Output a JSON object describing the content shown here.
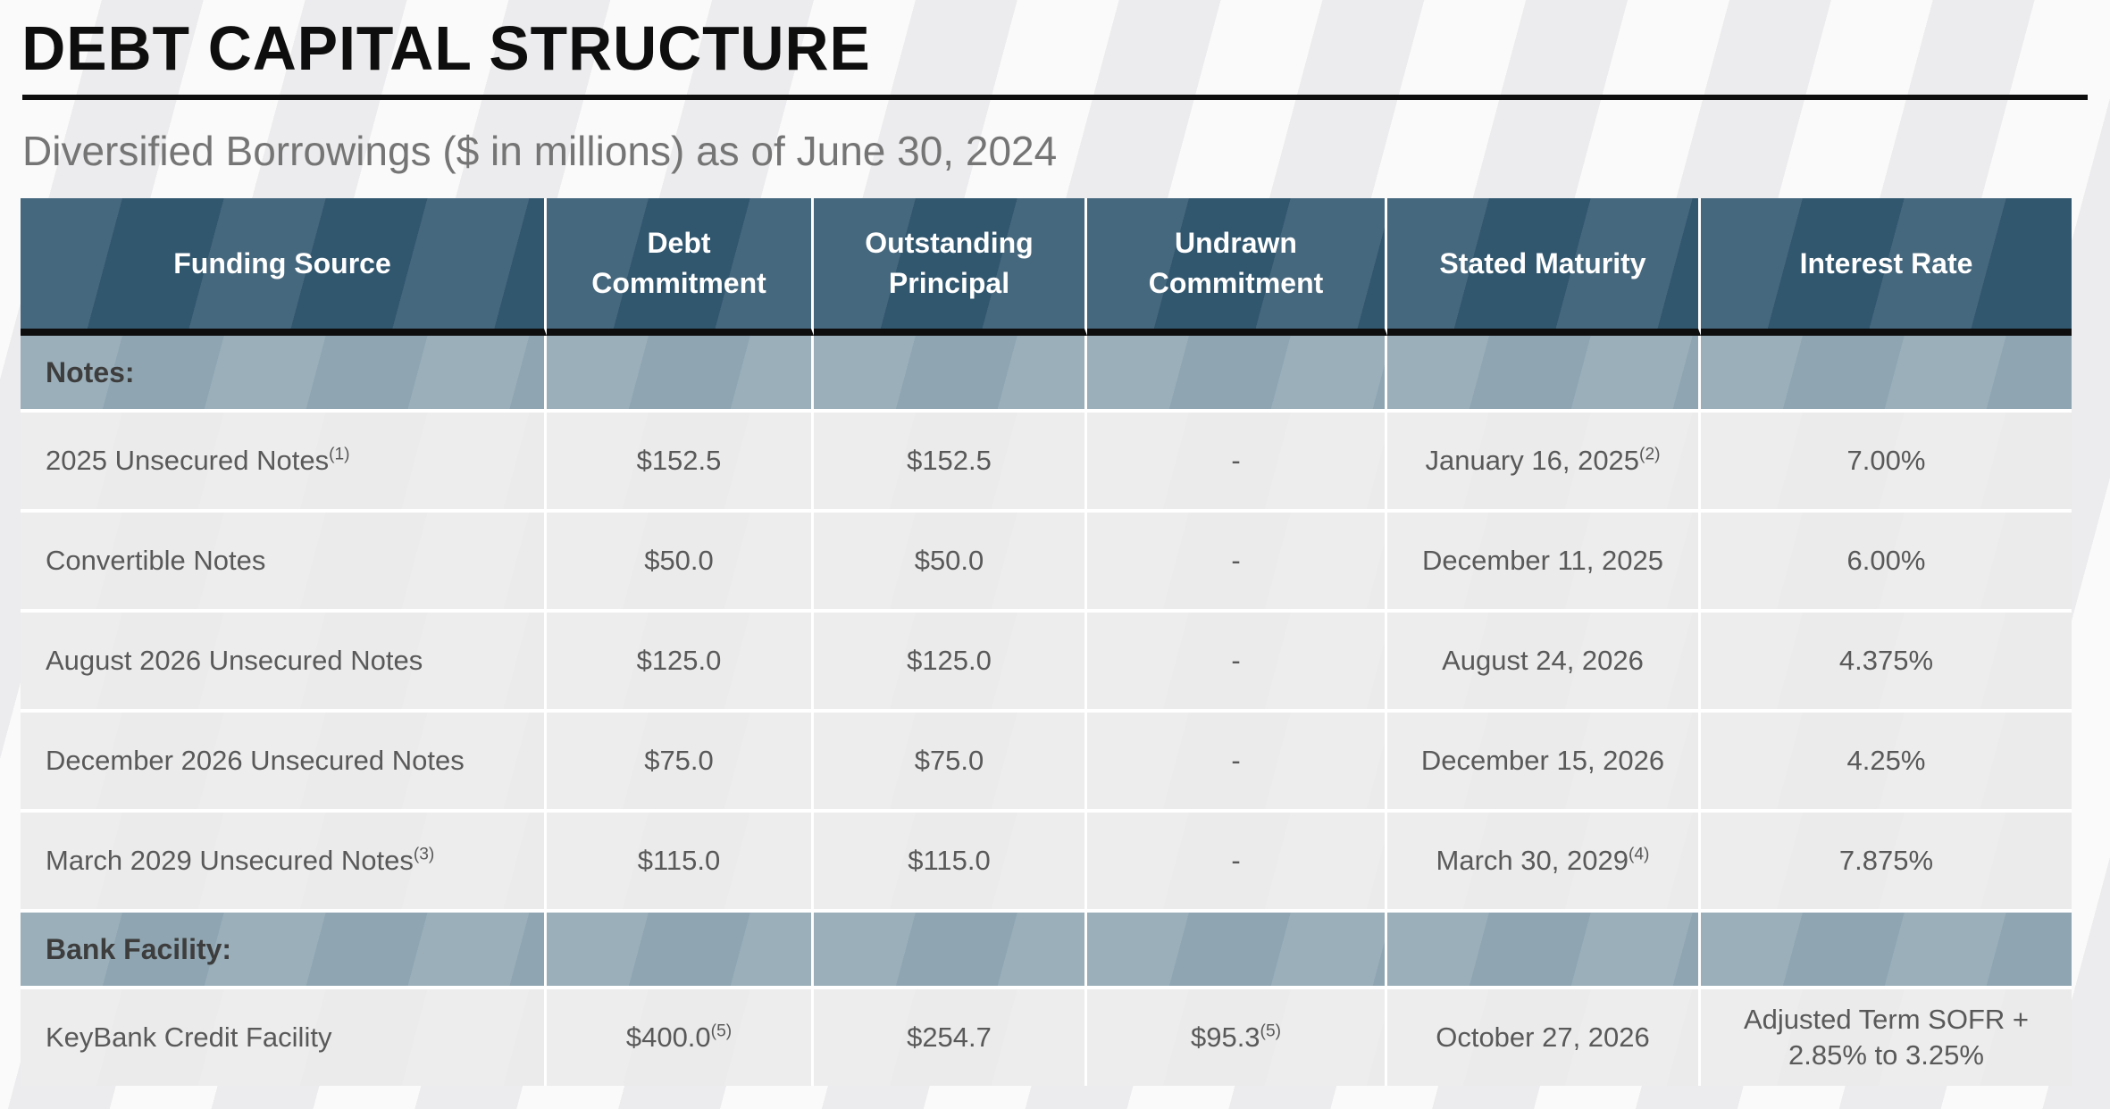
{
  "page": {
    "title": "DEBT CAPITAL STRUCTURE",
    "subtitle": "Diversified Borrowings ($ in millions) as of June 30, 2024"
  },
  "colors": {
    "header_bg": "#31576F",
    "section_bg": "#8FA6B2",
    "row_bg": "#EBEBEB",
    "rule_color": "#0e0e0e",
    "title_color": "#0e0e0e",
    "subtitle_color": "#757575",
    "data_text": "#595959",
    "section_text": "#3d3d3d"
  },
  "table": {
    "columns": [
      "Funding Source",
      "Debt Commitment",
      "Outstanding Principal",
      "Undrawn Commitment",
      "Stated Maturity",
      "Interest Rate"
    ],
    "rows": [
      {
        "type": "section",
        "label": "Notes:"
      },
      {
        "type": "data",
        "cells": [
          {
            "text": "2025 Unsecured Notes",
            "sup": "(1)"
          },
          {
            "text": "$152.5"
          },
          {
            "text": "$152.5"
          },
          {
            "text": "-"
          },
          {
            "text": "January 16, 2025",
            "sup": "(2)"
          },
          {
            "text": "7.00%"
          }
        ]
      },
      {
        "type": "data",
        "cells": [
          {
            "text": "Convertible Notes"
          },
          {
            "text": "$50.0"
          },
          {
            "text": "$50.0"
          },
          {
            "text": "-"
          },
          {
            "text": "December 11, 2025"
          },
          {
            "text": "6.00%"
          }
        ]
      },
      {
        "type": "data",
        "cells": [
          {
            "text": "August 2026 Unsecured Notes"
          },
          {
            "text": "$125.0"
          },
          {
            "text": "$125.0"
          },
          {
            "text": "-"
          },
          {
            "text": "August 24, 2026"
          },
          {
            "text": "4.375%"
          }
        ]
      },
      {
        "type": "data",
        "cells": [
          {
            "text": "December 2026 Unsecured Notes"
          },
          {
            "text": "$75.0"
          },
          {
            "text": "$75.0"
          },
          {
            "text": "-"
          },
          {
            "text": "December 15, 2026"
          },
          {
            "text": "4.25%"
          }
        ]
      },
      {
        "type": "data",
        "cells": [
          {
            "text": "March 2029 Unsecured Notes",
            "sup": "(3)"
          },
          {
            "text": "$115.0"
          },
          {
            "text": "$115.0"
          },
          {
            "text": "-"
          },
          {
            "text": "March 30, 2029",
            "sup": "(4)"
          },
          {
            "text": "7.875%"
          }
        ]
      },
      {
        "type": "section",
        "label": "Bank Facility:"
      },
      {
        "type": "data",
        "cells": [
          {
            "text": "KeyBank Credit Facility"
          },
          {
            "text": "$400.0",
            "sup": "(5)"
          },
          {
            "text": "$254.7"
          },
          {
            "text": "$95.3",
            "sup": "(5)"
          },
          {
            "text": "October 27, 2026"
          },
          {
            "text": "Adjusted Term SOFR + 2.85% to 3.25%"
          }
        ]
      }
    ]
  }
}
